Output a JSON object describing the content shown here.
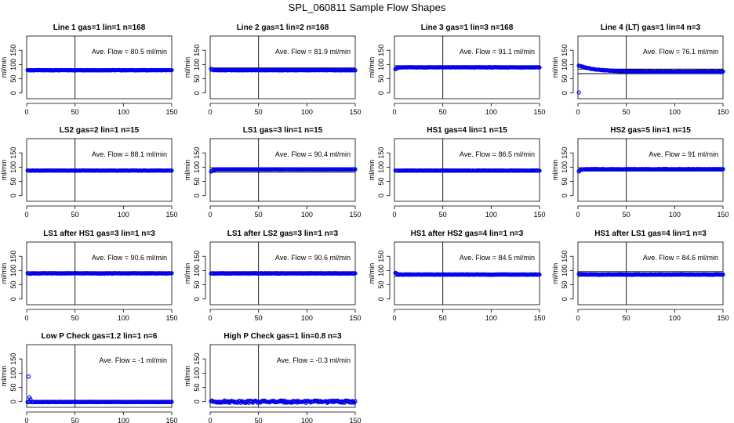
{
  "figure_title": "SPL_060811  Sample Flow Shapes",
  "colors": {
    "points": "#0000ee",
    "axis": "#000000",
    "frame": "#000000"
  },
  "chart_data": [
    {
      "type": "scatter",
      "title": "Line 1 gas=1 lin=1 n=168",
      "annotation": "Ave. Flow =  80.5  ml/min",
      "ylabel": "ml/min",
      "xlim": [
        0,
        150
      ],
      "ylim": [
        -20,
        200
      ],
      "xticks": [
        0,
        50,
        100,
        150
      ],
      "yticks": [
        0,
        50,
        100,
        150
      ],
      "hlines": [
        80,
        80
      ],
      "vline": 50,
      "profile": "flat",
      "level": 80,
      "start": 80
    },
    {
      "type": "scatter",
      "title": "Line 2 gas=1 lin=2 n=168",
      "annotation": "Ave. Flow =  81.9  ml/min",
      "ylabel": "ml/min",
      "xlim": [
        0,
        150
      ],
      "ylim": [
        -20,
        200
      ],
      "xticks": [
        0,
        50,
        100,
        150
      ],
      "yticks": [
        0,
        50,
        100,
        150
      ],
      "hlines": [
        88,
        76
      ],
      "vline": 50,
      "profile": "flat",
      "level": 80,
      "start": 86
    },
    {
      "type": "scatter",
      "title": "Line 3 gas=1 lin=3 n=168",
      "annotation": "Ave. Flow =  91.1  ml/min",
      "ylabel": "ml/min",
      "xlim": [
        0,
        150
      ],
      "ylim": [
        -20,
        200
      ],
      "xticks": [
        0,
        50,
        100,
        150
      ],
      "yticks": [
        0,
        50,
        100,
        150
      ],
      "hlines": [
        96,
        86
      ],
      "vline": 50,
      "profile": "rise",
      "level": 90,
      "start": 80
    },
    {
      "type": "scatter",
      "title": "Line 4 (LT) gas=1 lin=4 n=3",
      "annotation": "Ave. Flow =  76.1  ml/min",
      "ylabel": "ml/min",
      "xlim": [
        0,
        150
      ],
      "ylim": [
        -20,
        200
      ],
      "xticks": [
        0,
        50,
        100,
        150
      ],
      "yticks": [
        0,
        50,
        100,
        150
      ],
      "hlines": [
        84,
        68
      ],
      "vline": 50,
      "profile": "decay",
      "level": 75,
      "start": 95,
      "outlier": [
        1,
        2
      ]
    },
    {
      "type": "scatter",
      "title": "LS2 gas=2 lin=1 n=15",
      "annotation": "Ave. Flow =  88.1  ml/min",
      "ylabel": "ml/min",
      "xlim": [
        0,
        150
      ],
      "ylim": [
        -20,
        200
      ],
      "xticks": [
        0,
        50,
        100,
        150
      ],
      "yticks": [
        0,
        50,
        100,
        150
      ],
      "hlines": [
        92,
        84
      ],
      "vline": 50,
      "profile": "flat",
      "level": 88,
      "start": 88
    },
    {
      "type": "scatter",
      "title": "LS1 gas=3 lin=1 n=15",
      "annotation": "Ave. Flow =  90.4  ml/min",
      "ylabel": "ml/min",
      "xlim": [
        0,
        150
      ],
      "ylim": [
        -20,
        200
      ],
      "xticks": [
        0,
        50,
        100,
        150
      ],
      "yticks": [
        0,
        50,
        100,
        150
      ],
      "hlines": [
        98,
        82
      ],
      "vline": 50,
      "profile": "rise",
      "level": 92,
      "start": 80
    },
    {
      "type": "scatter",
      "title": "HS1 gas=4 lin=1 n=15",
      "annotation": "Ave. Flow =  86.5  ml/min",
      "ylabel": "ml/min",
      "xlim": [
        0,
        150
      ],
      "ylim": [
        -20,
        200
      ],
      "xticks": [
        0,
        50,
        100,
        150
      ],
      "yticks": [
        0,
        50,
        100,
        150
      ],
      "hlines": [
        92,
        82
      ],
      "vline": 50,
      "profile": "flat",
      "level": 88,
      "start": 88
    },
    {
      "type": "scatter",
      "title": "HS2 gas=5 lin=1 n=15",
      "annotation": "Ave. Flow =  91  ml/min",
      "ylabel": "ml/min",
      "xlim": [
        0,
        150
      ],
      "ylim": [
        -20,
        200
      ],
      "xticks": [
        0,
        50,
        100,
        150
      ],
      "yticks": [
        0,
        50,
        100,
        150
      ],
      "hlines": [
        98,
        86
      ],
      "vline": 50,
      "profile": "rise",
      "level": 93,
      "start": 80
    },
    {
      "type": "scatter",
      "title": "LS1 after HS1 gas=3 lin=1 n=3",
      "annotation": "Ave. Flow =  90.6  ml/min",
      "ylabel": "ml/min",
      "xlim": [
        0,
        150
      ],
      "ylim": [
        -20,
        200
      ],
      "xticks": [
        0,
        50,
        100,
        150
      ],
      "yticks": [
        0,
        50,
        100,
        150
      ],
      "hlines": [
        96,
        85
      ],
      "vline": 50,
      "profile": "flat",
      "level": 90,
      "start": 90
    },
    {
      "type": "scatter",
      "title": "LS1 after LS2 gas=3 lin=1 n=3",
      "annotation": "Ave. Flow =  90.6  ml/min",
      "ylabel": "ml/min",
      "xlim": [
        0,
        150
      ],
      "ylim": [
        -20,
        200
      ],
      "xticks": [
        0,
        50,
        100,
        150
      ],
      "yticks": [
        0,
        50,
        100,
        150
      ],
      "hlines": [
        96,
        84
      ],
      "vline": 50,
      "profile": "flat",
      "level": 90,
      "start": 90
    },
    {
      "type": "scatter",
      "title": "HS1 after HS2 gas=4 lin=1 n=3",
      "annotation": "Ave. Flow =  84.5  ml/min",
      "ylabel": "ml/min",
      "xlim": [
        0,
        150
      ],
      "ylim": [
        -20,
        200
      ],
      "xticks": [
        0,
        50,
        100,
        150
      ],
      "yticks": [
        0,
        50,
        100,
        150
      ],
      "hlines": [
        92,
        80
      ],
      "vline": 50,
      "profile": "flat",
      "level": 86,
      "start": 93
    },
    {
      "type": "scatter",
      "title": "HS1 after LS1 gas=4 lin=1 n=3",
      "annotation": "Ave. Flow =  84.6  ml/min",
      "ylabel": "ml/min",
      "xlim": [
        0,
        150
      ],
      "ylim": [
        -20,
        200
      ],
      "xticks": [
        0,
        50,
        100,
        150
      ],
      "yticks": [
        0,
        50,
        100,
        150
      ],
      "hlines": [
        96,
        80
      ],
      "vline": 50,
      "profile": "flat",
      "level": 86,
      "start": 90
    },
    {
      "type": "scatter",
      "title": "Low P Check gas=1.2 lin=1 n=6",
      "annotation": "Ave. Flow =  -1  ml/min",
      "ylabel": "ml/min",
      "xlim": [
        0,
        150
      ],
      "ylim": [
        -20,
        200
      ],
      "xticks": [
        0,
        50,
        100,
        150
      ],
      "yticks": [
        0,
        50,
        100,
        150
      ],
      "hlines": [
        5,
        -7
      ],
      "vline": 50,
      "profile": "flat",
      "level": -1,
      "start": -1,
      "outlier": [
        2,
        88
      ],
      "extra": [
        [
          3,
          15
        ],
        [
          4,
          8
        ]
      ]
    },
    {
      "type": "scatter",
      "title": "High P Check gas=1 lin=0.8 n=3",
      "annotation": "Ave. Flow =  -0.3  ml/min",
      "ylabel": "ml/min",
      "xlim": [
        0,
        150
      ],
      "ylim": [
        -20,
        200
      ],
      "xticks": [
        0,
        50,
        100,
        150
      ],
      "yticks": [
        0,
        50,
        100,
        150
      ],
      "hlines": [
        5,
        -5
      ],
      "vline": 50,
      "profile": "noisy",
      "level": 0,
      "start": 3
    }
  ]
}
